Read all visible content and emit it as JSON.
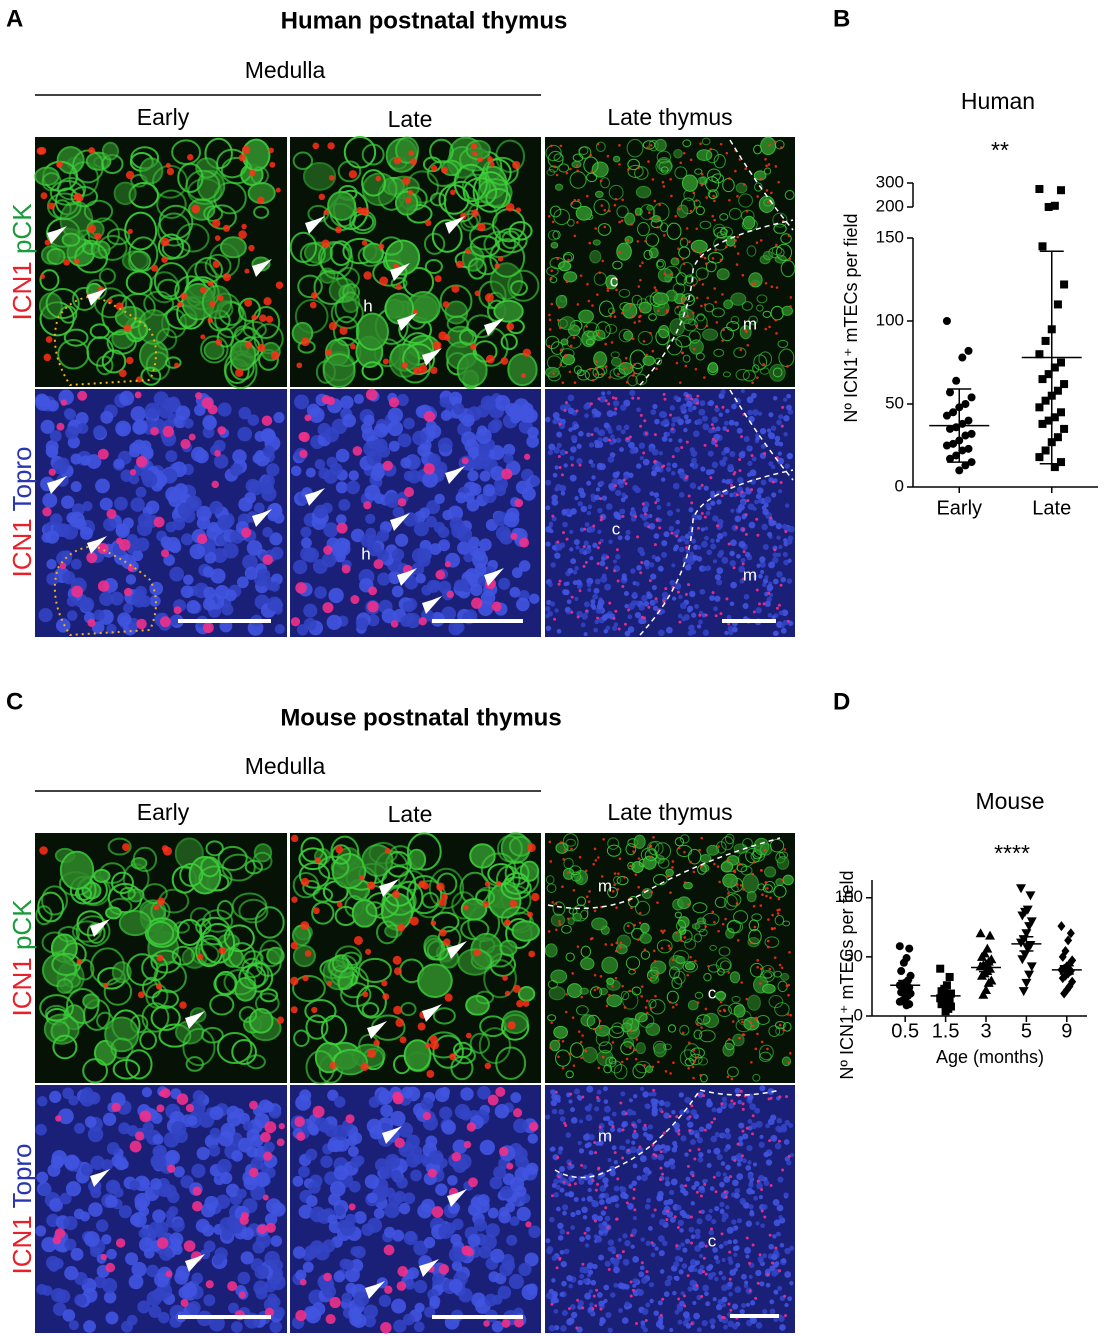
{
  "panel_a": {
    "label": "A",
    "title": "Human postnatal thymus",
    "region": "Medulla",
    "columns": [
      "Early",
      "Late",
      "Late thymus"
    ],
    "rows": [
      [
        "ICN1",
        "pCK"
      ],
      [
        "ICN1",
        "Topro"
      ]
    ],
    "image_labels": {
      "h": "h",
      "c": "c",
      "m": "m"
    }
  },
  "panel_c": {
    "label": "C",
    "title": "Mouse postnatal thymus",
    "region": "Medulla",
    "columns": [
      "Early",
      "Late",
      "Late thymus"
    ],
    "rows": [
      [
        "ICN1",
        "pCK"
      ],
      [
        "ICN1",
        "Topro"
      ]
    ],
    "image_labels": {
      "c": "c",
      "m": "m"
    }
  },
  "chart_data": [
    {
      "type": "strip",
      "panel_label": "B",
      "title": "Human",
      "annotation": "**",
      "y_label": "Nº ICN1⁺ mTECs per field",
      "categories": [
        "Early",
        "Late"
      ],
      "markers": [
        "circle",
        "square"
      ],
      "color": "#000000",
      "values": [
        [
          100,
          82,
          78,
          64,
          57,
          54,
          50,
          48,
          45,
          43,
          40,
          38,
          36,
          35,
          32,
          31,
          28,
          26,
          25,
          23,
          22,
          19,
          17,
          15,
          13,
          10
        ],
        [
          275,
          270,
          205,
          200,
          145,
          122,
          110,
          95,
          88,
          80,
          75,
          72,
          68,
          65,
          62,
          58,
          55,
          52,
          48,
          45,
          42,
          40,
          38,
          35,
          30,
          27,
          22,
          18,
          15,
          12
        ]
      ],
      "means": [
        37,
        78
      ],
      "error": [
        22,
        64
      ],
      "ylim": [
        0,
        300
      ],
      "y_break": [
        150,
        200
      ],
      "yticks": [
        0,
        50,
        100,
        150,
        200,
        300
      ]
    },
    {
      "type": "strip",
      "panel_label": "D",
      "title": "Mouse",
      "annotation": "****",
      "y_label": "Nº ICN1⁺ mTECs per field",
      "x_label": "Age (months)",
      "categories": [
        "0.5",
        "1.5",
        "3",
        "5",
        "9"
      ],
      "markers": [
        "circle",
        "square",
        "triangle-up",
        "triangle-down",
        "diamond"
      ],
      "color": "#000000",
      "values": [
        [
          59,
          57,
          49,
          45,
          38,
          34,
          30,
          28,
          27,
          26,
          24,
          23,
          21,
          20,
          19,
          17,
          15,
          13,
          12,
          10,
          9
        ],
        [
          40,
          33,
          26,
          23,
          21,
          19,
          18,
          17,
          16,
          15,
          14,
          12,
          11,
          10,
          8,
          6,
          4
        ],
        [
          70,
          68,
          57,
          53,
          50,
          48,
          46,
          44,
          43,
          42,
          40,
          38,
          36,
          34,
          30,
          28,
          22,
          18
        ],
        [
          108,
          102,
          90,
          88,
          85,
          80,
          76,
          70,
          65,
          62,
          60,
          57,
          52,
          48,
          42,
          35,
          28,
          21
        ],
        [
          76,
          70,
          64,
          55,
          50,
          47,
          44,
          42,
          40,
          39,
          38,
          36,
          34,
          32,
          29,
          25,
          22,
          19
        ]
      ],
      "means": [
        26,
        17,
        41,
        61,
        39
      ],
      "error": [
        4,
        3,
        3.5,
        6,
        3.5
      ],
      "ylim": [
        0,
        115
      ],
      "yticks": [
        0,
        50,
        100
      ]
    }
  ]
}
